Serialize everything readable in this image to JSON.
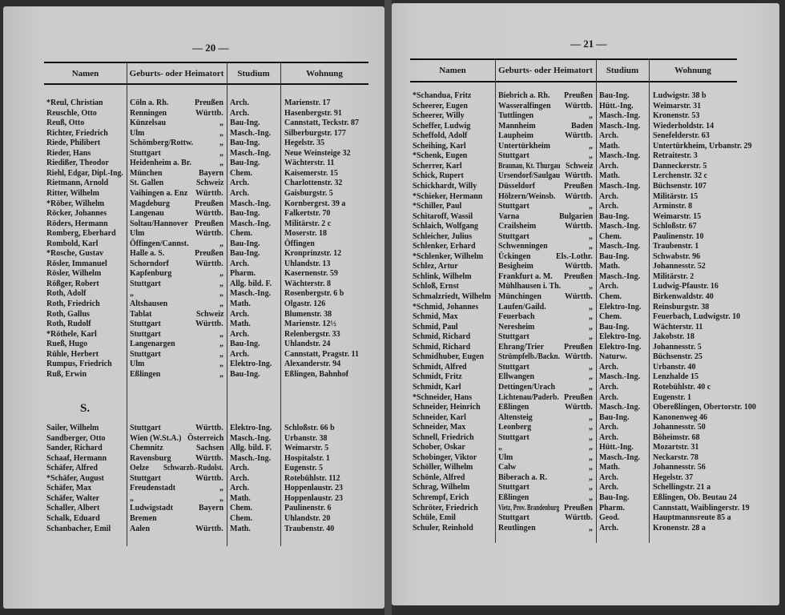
{
  "columns": [
    "Namen",
    "Geburts- oder Heimatort",
    "Studium",
    "Wohnung"
  ],
  "left_page": {
    "page_number": "— 20 —",
    "rows": [
      [
        "*Reul, Christian",
        "Cöln a. Rh.",
        "Preußen",
        "Arch.",
        "Marienstr. 17"
      ],
      [
        "Reuschle, Otto",
        "Renningen",
        "Württb.",
        "Arch.",
        "Hasenbergstr. 91"
      ],
      [
        "Reuß, Otto",
        "Künzelsau",
        "„",
        "Bau-Ing.",
        "Cannstatt, Teckstr. 87"
      ],
      [
        "Richter, Friedrich",
        "Ulm",
        "„",
        "Masch.-Ing.",
        "Silberburgstr. 177"
      ],
      [
        "Riede, Philibert",
        "Schömberg/Rottw.",
        "„",
        "Bau-Ing.",
        "Hegelstr. 35"
      ],
      [
        "Rieder, Hans",
        "Stuttgart",
        "„",
        "Masch.-Ing.",
        "Neue Weinsteige 32"
      ],
      [
        "Riedißer, Theodor",
        "Heidenheim a. Br.",
        "„",
        "Bau-Ing.",
        "Wächterstr. 11"
      ],
      [
        "Riehl, Edgar, Dipl.-Ing.",
        "München",
        "Bayern",
        "Chem.",
        "Kaisemerstr. 15"
      ],
      [
        "Rietmann, Arnold",
        "St. Gallen",
        "Schweiz",
        "Arch.",
        "Charlottenstr. 32"
      ],
      [
        "Ritter, Wilhelm",
        "Vaihingen a. Enz",
        "Württb.",
        "Arch.",
        "Gaisburgstr. 5"
      ],
      [
        "*Röber, Wilhelm",
        "Magdeburg",
        "Preußen",
        "Masch.-Ing.",
        "Kornbergrst. 39 a"
      ],
      [
        "Röcker, Johannes",
        "Langenau",
        "Württb.",
        "Bau-Ing.",
        "Falkertstr. 70"
      ],
      [
        "Röders, Hermann",
        "Soltau/Hannover",
        "Preußen",
        "Masch.-Ing.",
        "Militärstr. 2 c"
      ],
      [
        "Romberg, Eberhard",
        "Ulm",
        "Württb.",
        "Chem.",
        "Moserstr. 18"
      ],
      [
        "Rombold, Karl",
        "Öffingen/Cannst.",
        "„",
        "Bau-Ing.",
        "Öffingen"
      ],
      [
        "*Rosche, Gustav",
        "Halle a. S.",
        "Preußen",
        "Bau-Ing.",
        "Kronprinzstr. 12"
      ],
      [
        "Rösler, Immanuel",
        "Schorndorf",
        "Württb.",
        "Arch.",
        "Uhlandstr. 13"
      ],
      [
        "Rösler, Wilhelm",
        "Kapfenburg",
        "„",
        "Pharm.",
        "Kasernenstr. 59"
      ],
      [
        "Rößger, Robert",
        "Stuttgart",
        "„",
        "Allg. bild. F.",
        "Wächterstr. 8"
      ],
      [
        "Roth, Adolf",
        "„",
        "„",
        "Masch.-Ing.",
        "Rosenbergstr. 6 b"
      ],
      [
        "Roth, Friedrich",
        "Altshausen",
        "„",
        "Math.",
        "Olgastr. 126"
      ],
      [
        "Roth, Gallus",
        "Tablat",
        "Schweiz",
        "Arch.",
        "Blumenstr. 38"
      ],
      [
        "Roth, Rudolf",
        "Stuttgart",
        "Württb.",
        "Math.",
        "Marienstr. 12½"
      ],
      [
        "*Röthele, Karl",
        "Stuttgart",
        "„",
        "Arch.",
        "Relenbergstr. 33"
      ],
      [
        "Rueß, Hugo",
        "Langenargen",
        "„",
        "Bau-Ing.",
        "Uhlandstr. 24"
      ],
      [
        "Rühle, Herbert",
        "Stuttgart",
        "„",
        "Arch.",
        "Cannstatt, Pragstr. 11"
      ],
      [
        "Rumpus, Friedrich",
        "Ulm",
        "„",
        "Elektro-Ing.",
        "Alexanderstr. 94"
      ],
      [
        "Ruß, Erwin",
        "Eßlingen",
        "„",
        "Bau-Ing.",
        "Eßlingen, Bahnhof"
      ]
    ],
    "section_letter": "S.",
    "section_rows": [
      [
        "Sailer, Wilhelm",
        "Stuttgart",
        "Württb.",
        "Elektro-Ing.",
        "Schloßstr. 66 b"
      ],
      [
        "Sandberger, Otto",
        "Wien (W.St.A.)",
        "Österreich",
        "Masch.-Ing.",
        "Urbanstr. 38"
      ],
      [
        "Sander, Richard",
        "Chemnitz",
        "Sachsen",
        "Allg. bild. F.",
        "Weimarstr. 5"
      ],
      [
        "Schaaf, Hermann",
        "Ravensburg",
        "Württb.",
        "Masch.-Ing.",
        "Hospitalstr. 1"
      ],
      [
        "Schäfer, Alfred",
        "Oelze",
        "Schwarzb.-Rudolst.",
        "Arch.",
        "Eugenstr. 5"
      ],
      [
        "*Schäfer, August",
        "Stuttgart",
        "Württb.",
        "Arch.",
        "Rotebühlstr. 112"
      ],
      [
        "Schäfer, Max",
        "Freudenstadt",
        "„",
        "Arch.",
        "Hoppenlaustr. 23"
      ],
      [
        "Schäfer, Walter",
        "„",
        "„",
        "Math.",
        "Hoppenlaustr. 23"
      ],
      [
        "Schaller, Albert",
        "Ludwigstadt",
        "Bayern",
        "Chem.",
        "Paulinenstr. 6"
      ],
      [
        "Schalk, Eduard",
        "Bremen",
        "",
        "Chem.",
        "Uhlandstr. 20"
      ],
      [
        "Schanbacher, Emil",
        "Aalen",
        "Württb.",
        "Math.",
        "Traubenstr. 40"
      ]
    ]
  },
  "right_page": {
    "page_number": "— 21 —",
    "rows": [
      [
        "*Schandua, Fritz",
        "Biebrich a. Rh.",
        "Preußen",
        "Bau-Ing.",
        "Ludwigstr. 38 b"
      ],
      [
        "Scheerer, Eugen",
        "Wasseralfingen",
        "Württb.",
        "Hütt.-Ing.",
        "Weimarstr. 31"
      ],
      [
        "Scheerer, Willy",
        "Tuttlingen",
        "„",
        "Masch.-Ing.",
        "Kronenstr. 53"
      ],
      [
        "Scheffer, Ludwig",
        "Mannheim",
        "Baden",
        "Masch.-Ing.",
        "Wiederholdstr. 14"
      ],
      [
        "Scheffold, Adolf",
        "Laupheim",
        "Württb.",
        "Arch.",
        "Senefelderstr. 63"
      ],
      [
        "Scheihing, Karl",
        "Untertürkheim",
        "„",
        "Math.",
        "Untertürkheim, Urbanstr. 29"
      ],
      [
        "*Schenk, Eugen",
        "Stuttgart",
        "„",
        "Masch.-Ing.",
        "Retraitestr. 3"
      ],
      [
        "Scherrer, Karl",
        "Braunau, Kt. Thurgau",
        "Schweiz",
        "Arch.",
        "Danneckerstr. 5"
      ],
      [
        "Schick, Rupert",
        "Ursendorf/Saulgau",
        "Württb.",
        "Math.",
        "Lerchenstr. 32 c"
      ],
      [
        "Schickhardt, Willy",
        "Düsseldorf",
        "Preußen",
        "Masch.-Ing.",
        "Büchsenstr. 107"
      ],
      [
        "*Schieker, Hermann",
        "Hölzern/Weinsb.",
        "Württb.",
        "Arch.",
        "Militärstr. 15"
      ],
      [
        "*Schiller, Paul",
        "Stuttgart",
        "„",
        "Arch.",
        "Arminstr. 8"
      ],
      [
        "Schitaroff, Wassil",
        "Varna",
        "Bulgarien",
        "Bau-Ing.",
        "Weimarstr. 15"
      ],
      [
        "Schlaich, Wolfgang",
        "Crailsheim",
        "Württb.",
        "Masch.-Ing.",
        "Schloßstr. 67"
      ],
      [
        "Schleicher, Julius",
        "Stuttgart",
        "„",
        "Chem.",
        "Paulinenstr. 10"
      ],
      [
        "Schlenker, Erhard",
        "Schwenningen",
        "„",
        "Masch.-Ing.",
        "Traubenstr. 1"
      ],
      [
        "*Schlenker, Wilhelm",
        "Ückingen",
        "Els.-Lothr.",
        "Bau-Ing.",
        "Schwabstr. 96"
      ],
      [
        "Schlez, Artur",
        "Besigheim",
        "Württb.",
        "Math.",
        "Johannesstr. 52"
      ],
      [
        "Schlink, Wilhelm",
        "Frankfurt a. M.",
        "Preußen",
        "Masch.-Ing.",
        "Militärstr. 2"
      ],
      [
        "Schloß, Ernst",
        "Mühlhausen i. Th.",
        "„",
        "Arch.",
        "Ludwig-Pfaustr. 16"
      ],
      [
        "Schmalzriedt, Wilhelm",
        "Münchingen",
        "Württb.",
        "Chem.",
        "Birkenwaldstr. 40"
      ],
      [
        "*Schmid, Johannes",
        "Laufen/Gaild.",
        "„",
        "Elektro-Ing.",
        "Reinsburgstr. 38"
      ],
      [
        "Schmid, Max",
        "Feuerbach",
        "„",
        "Chem.",
        "Feuerbach, Ludwigstr. 10"
      ],
      [
        "Schmid, Paul",
        "Neresheim",
        "„",
        "Bau-Ing.",
        "Wächterstr. 11"
      ],
      [
        "Schmid, Richard",
        "Stuttgart",
        "„",
        "Elektro-Ing.",
        "Jakobstr. 18"
      ],
      [
        "Schmid, Richard",
        "Ehrang/Trier",
        "Preußen",
        "Elektro-Ing.",
        "Johannesstr. 5"
      ],
      [
        "Schmidhuber, Eugen",
        "Strümpfelb./Backn.",
        "Württb.",
        "Naturw.",
        "Büchsenstr. 25"
      ],
      [
        "Schmidt, Alfred",
        "Stuttgart",
        "„",
        "Arch.",
        "Urbanstr. 40"
      ],
      [
        "Schmidt, Fritz",
        "Ellwangen",
        "„",
        "Masch.-Ing.",
        "Lenzhalde 15"
      ],
      [
        "Schmidt, Karl",
        "Dettingen/Urach",
        "„",
        "Arch.",
        "Rotebühlstr. 40 c"
      ],
      [
        "*Schneider, Hans",
        "Lichtenau/Paderb.",
        "Preußen",
        "Arch.",
        "Eugenstr. 1"
      ],
      [
        "Schneider, Heinrich",
        "Eßlingen",
        "Württb.",
        "Masch.-Ing.",
        "Obereßlingen, Obertorstr. 100"
      ],
      [
        "Schneider, Karl",
        "Altensteig",
        "„",
        "Bau-Ing.",
        "Kanonenweg 46"
      ],
      [
        "Schneider, Max",
        "Leonberg",
        "„",
        "Arch.",
        "Johannesstr. 50"
      ],
      [
        "Schnell, Friedrich",
        "Stuttgart",
        "„",
        "Arch.",
        "Böheimstr. 68"
      ],
      [
        "Schober, Oskar",
        "„",
        "„",
        "Hütt.-Ing.",
        "Mozartstr. 31"
      ],
      [
        "Schobinger, Viktor",
        "Ulm",
        "„",
        "Masch.-Ing.",
        "Neckarstr. 78"
      ],
      [
        "Schöller, Wilhelm",
        "Calw",
        "„",
        "Math.",
        "Johannesstr. 56"
      ],
      [
        "Schönle, Alfred",
        "Biberach a. R.",
        "„",
        "Arch.",
        "Hegelstr. 37"
      ],
      [
        "Schrag, Wilhelm",
        "Stuttgart",
        "„",
        "Arch.",
        "Schellingstr. 21 a"
      ],
      [
        "Schrempf, Erich",
        "Eßlingen",
        "„",
        "Bau-Ing.",
        "Eßlingen, Ob. Beutau 24"
      ],
      [
        "Schröter, Friedrich",
        "Vietz, Prov. Brandenburg",
        "Preußen",
        "Pharm.",
        "Cannstatt, Waiblingerstr. 19"
      ],
      [
        "Schüle, Emil",
        "Stuttgart",
        "Württb.",
        "Geod.",
        "Hauptmannsreute 85 a"
      ],
      [
        "Schuler, Reinhold",
        "Reutlingen",
        "„",
        "Arch.",
        "Kronenstr. 28 a"
      ]
    ]
  }
}
